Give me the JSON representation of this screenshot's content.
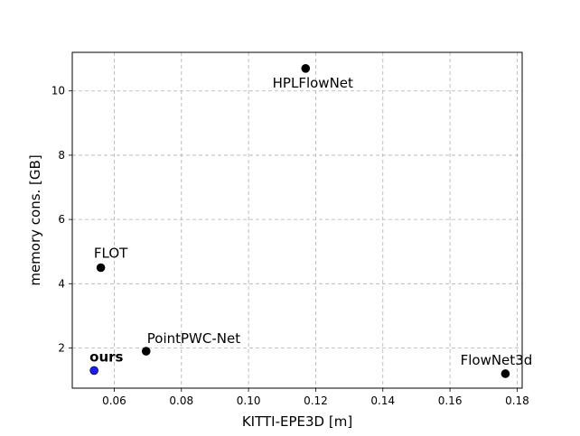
{
  "chart_data": {
    "type": "scatter",
    "xlabel": "KITTI-EPE3D [m]",
    "ylabel": "memory cons. [GB]",
    "xlim": [
      0.0475,
      0.1815
    ],
    "ylim": [
      0.75,
      11.2
    ],
    "xticks": [
      0.06,
      0.08,
      0.1,
      0.12,
      0.14,
      0.16,
      0.18
    ],
    "xtick_labels": [
      "0.06",
      "0.08",
      "0.10",
      "0.12",
      "0.14",
      "0.16",
      "0.18"
    ],
    "yticks": [
      2,
      4,
      6,
      8,
      10
    ],
    "ytick_labels": [
      "2",
      "4",
      "6",
      "8",
      "10"
    ],
    "grid": true,
    "points": [
      {
        "label": "HPLFlowNet",
        "x": 0.117,
        "y": 10.7,
        "color": "#000000",
        "bold": false,
        "label_pos": "below"
      },
      {
        "label": "FLOT",
        "x": 0.056,
        "y": 4.5,
        "color": "#000000",
        "bold": false,
        "label_pos": "above"
      },
      {
        "label": "PointPWC-Net",
        "x": 0.0695,
        "y": 1.9,
        "color": "#000000",
        "bold": false,
        "label_pos": "above"
      },
      {
        "label": "FlowNet3d",
        "x": 0.1765,
        "y": 1.2,
        "color": "#000000",
        "bold": false,
        "label_pos": "above"
      },
      {
        "label": "ours",
        "x": 0.054,
        "y": 1.3,
        "color": "#1a1aff",
        "bold": true,
        "label_pos": "above"
      }
    ]
  }
}
